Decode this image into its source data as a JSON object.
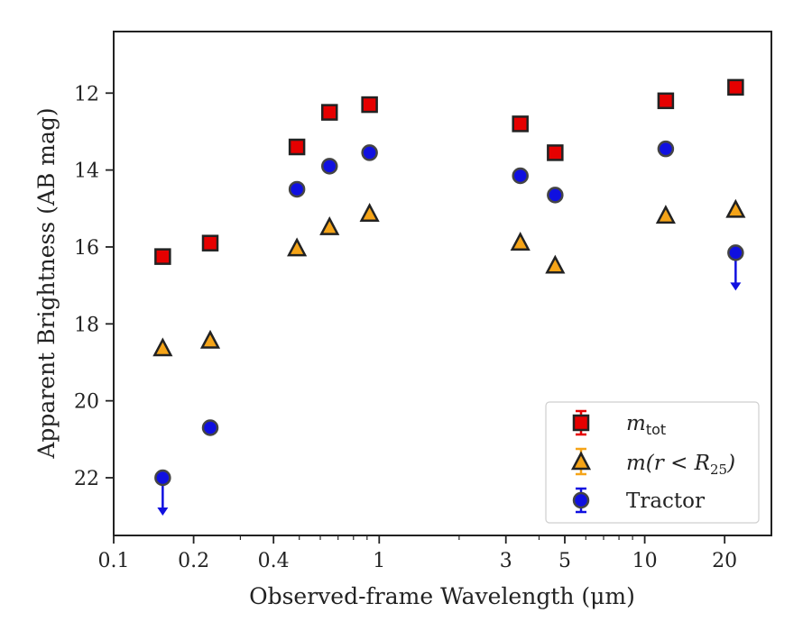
{
  "chart_data": {
    "type": "scatter",
    "xlabel": "Observed-frame Wavelength (μm)",
    "ylabel": "Apparent Brightness (AB mag)",
    "x_scale": "log",
    "y_inverted": true,
    "xlim": [
      0.1,
      30
    ],
    "ylim": [
      23.5,
      10.4
    ],
    "x_ticks": [
      0.1,
      0.2,
      0.4,
      1,
      3,
      5,
      10,
      20
    ],
    "x_tick_labels": [
      "0.1",
      "0.2",
      "0.4",
      "1",
      "3",
      "5",
      "10",
      "20"
    ],
    "y_ticks": [
      12,
      14,
      16,
      18,
      20,
      22
    ],
    "y_tick_labels": [
      "12",
      "14",
      "16",
      "18",
      "20",
      "22"
    ],
    "grid": false,
    "legend_position": "lower-right",
    "series": [
      {
        "name": "m_tot",
        "marker": "square",
        "color": "#e60000",
        "edge_color": "#222222",
        "x": [
          0.153,
          0.231,
          0.49,
          0.65,
          0.92,
          3.4,
          4.6,
          12.0,
          22.0
        ],
        "y": [
          16.25,
          15.9,
          13.4,
          12.5,
          12.3,
          12.8,
          13.55,
          12.2,
          11.85
        ]
      },
      {
        "name": "m(r < R25)",
        "marker": "triangle",
        "color": "#f5a418",
        "edge_color": "#222222",
        "x": [
          0.153,
          0.231,
          0.49,
          0.65,
          0.92,
          3.4,
          4.6,
          12.0,
          22.0
        ],
        "y": [
          18.65,
          18.45,
          16.05,
          15.5,
          15.15,
          15.9,
          16.5,
          15.2,
          15.05
        ]
      },
      {
        "name": "Tractor",
        "marker": "circle",
        "color": "#1010e0",
        "edge_color": "#444444",
        "x": [
          0.153,
          0.231,
          0.49,
          0.65,
          0.92,
          3.4,
          4.6,
          12.0,
          22.0
        ],
        "y": [
          22.0,
          20.7,
          14.5,
          13.9,
          13.55,
          14.15,
          14.65,
          13.45,
          16.15
        ],
        "upper_limits_at_x": [
          0.153,
          22.0
        ]
      }
    ]
  },
  "legend": {
    "entry_tot_base": "m",
    "entry_tot_sub": "tot",
    "entry_r_prefix": "m(r < R",
    "entry_r_sub": "25",
    "entry_r_suffix": ")",
    "entry_tractor": "Tractor"
  }
}
